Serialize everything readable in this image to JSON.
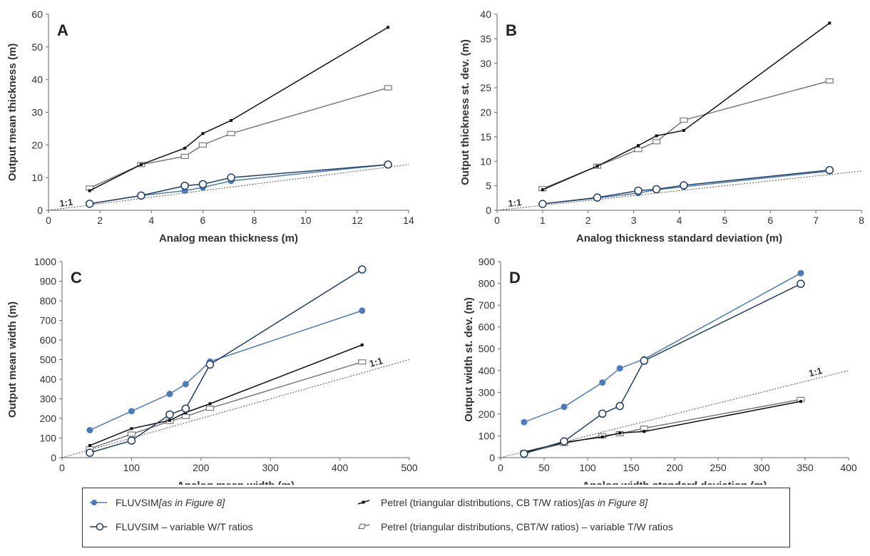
{
  "chart_data": [
    {
      "type": "line",
      "panel_label": "A",
      "xlabel": "Analog mean thickness (m)",
      "ylabel": "Output mean thickness (m)",
      "xlim": [
        0,
        14
      ],
      "ylim": [
        0,
        60
      ],
      "xticks": [
        0,
        2,
        4,
        6,
        8,
        10,
        12,
        14
      ],
      "yticks": [
        0,
        10,
        20,
        30,
        40,
        50,
        60
      ],
      "one_to_one_label": "1:1",
      "series": [
        {
          "key": "fluv_fig8",
          "x": [
            1.6,
            3.6,
            5.3,
            6.0,
            7.1,
            13.2
          ],
          "y": [
            2.0,
            4.5,
            6.0,
            7.0,
            9.0,
            14.0
          ]
        },
        {
          "key": "fluv_var",
          "x": [
            1.6,
            3.6,
            5.3,
            6.0,
            7.1,
            13.2
          ],
          "y": [
            2.0,
            4.5,
            7.5,
            8.0,
            10.0,
            14.0
          ]
        },
        {
          "key": "petrel_fig8",
          "x": [
            1.6,
            3.6,
            5.3,
            6.0,
            7.1,
            13.2
          ],
          "y": [
            6.0,
            14.0,
            19.0,
            23.5,
            27.5,
            56.0
          ]
        },
        {
          "key": "petrel_var",
          "x": [
            1.6,
            3.6,
            5.3,
            6.0,
            7.1,
            13.2
          ],
          "y": [
            6.8,
            14.0,
            16.5,
            20.0,
            23.5,
            37.5
          ]
        }
      ]
    },
    {
      "type": "line",
      "panel_label": "B",
      "xlabel": "Analog thickness standard deviation (m)",
      "ylabel": "Output thickness st. dev. (m)",
      "xlim": [
        0,
        8
      ],
      "ylim": [
        0,
        40
      ],
      "xticks": [
        0,
        1,
        2,
        3,
        4,
        5,
        6,
        7,
        8
      ],
      "yticks": [
        0,
        5,
        10,
        15,
        20,
        25,
        30,
        35,
        40
      ],
      "one_to_one_label": "1:1",
      "series": [
        {
          "key": "fluv_fig8",
          "x": [
            1.0,
            2.2,
            3.1,
            3.5,
            4.1,
            7.3
          ],
          "y": [
            1.3,
            2.5,
            3.5,
            4.2,
            4.8,
            8.0
          ]
        },
        {
          "key": "fluv_var",
          "x": [
            1.0,
            2.2,
            3.1,
            3.5,
            4.1,
            7.3
          ],
          "y": [
            1.3,
            2.6,
            4.0,
            4.3,
            5.1,
            8.2
          ]
        },
        {
          "key": "petrel_fig8",
          "x": [
            1.0,
            2.2,
            3.1,
            3.5,
            4.1,
            7.3
          ],
          "y": [
            4.2,
            9.0,
            13.2,
            15.2,
            16.3,
            38.2
          ]
        },
        {
          "key": "petrel_var",
          "x": [
            1.0,
            2.2,
            3.1,
            3.5,
            4.1,
            7.3
          ],
          "y": [
            4.4,
            9.0,
            12.4,
            14.0,
            18.4,
            26.4
          ]
        }
      ]
    },
    {
      "type": "line",
      "panel_label": "C",
      "xlabel": "Analog mean width (m)",
      "ylabel": "Output mean width (m)",
      "xlim": [
        0,
        500
      ],
      "ylim": [
        0,
        1000
      ],
      "xticks": [
        0,
        100,
        200,
        300,
        400,
        500
      ],
      "yticks": [
        0,
        100,
        200,
        300,
        400,
        500,
        600,
        700,
        800,
        900,
        1000
      ],
      "one_to_one_label": "1:1",
      "series": [
        {
          "key": "fluv_fig8",
          "x": [
            40,
            100,
            155,
            178,
            213,
            432
          ],
          "y": [
            140,
            237,
            325,
            375,
            490,
            750
          ]
        },
        {
          "key": "fluv_var",
          "x": [
            40,
            100,
            155,
            178,
            213,
            432
          ],
          "y": [
            25,
            87,
            220,
            250,
            475,
            960
          ]
        },
        {
          "key": "petrel_fig8",
          "x": [
            40,
            100,
            155,
            178,
            213,
            432
          ],
          "y": [
            62,
            148,
            190,
            230,
            275,
            575
          ]
        },
        {
          "key": "petrel_var",
          "x": [
            40,
            100,
            155,
            178,
            213,
            432
          ],
          "y": [
            45,
            120,
            185,
            210,
            252,
            488
          ]
        }
      ]
    },
    {
      "type": "line",
      "panel_label": "D",
      "xlabel": "Analog width standard deviation (m)",
      "ylabel": "Output width st. dev. (m)",
      "xlim": [
        0,
        400
      ],
      "ylim": [
        0,
        900
      ],
      "xticks": [
        0,
        50,
        100,
        150,
        200,
        250,
        300,
        350,
        400
      ],
      "yticks": [
        0,
        100,
        200,
        300,
        400,
        500,
        600,
        700,
        800,
        900
      ],
      "one_to_one_label": "1:1",
      "series": [
        {
          "key": "fluv_fig8",
          "x": [
            27,
            73,
            117,
            137,
            165,
            345
          ],
          "y": [
            163,
            233,
            345,
            410,
            452,
            847
          ]
        },
        {
          "key": "fluv_var",
          "x": [
            27,
            73,
            117,
            137,
            165,
            345
          ],
          "y": [
            18,
            75,
            202,
            237,
            445,
            798
          ]
        },
        {
          "key": "petrel_fig8",
          "x": [
            27,
            73,
            117,
            137,
            165,
            345
          ],
          "y": [
            25,
            70,
            95,
            113,
            120,
            258
          ]
        },
        {
          "key": "petrel_var",
          "x": [
            27,
            73,
            117,
            137,
            165,
            345
          ],
          "y": [
            22,
            65,
            100,
            110,
            135,
            267
          ]
        }
      ]
    }
  ],
  "colors": {
    "fluvsim": "#4a7bbf",
    "petrel_fig8": "#111111",
    "petrel_var": "#7a7a7a",
    "one_to_one": "#555555"
  },
  "legend": {
    "fluv_fig8": {
      "text": "FLUVSIM ",
      "italic": "[as in Figure 8]",
      "text_after": ""
    },
    "petrel_fig8": {
      "text": "Petrel (triangular distributions, CB T/W ratios) ",
      "italic": "[as in Figure 8]",
      "text_after": ""
    },
    "fluv_var": {
      "text": "FLUVSIM – variable W/T ratios"
    },
    "petrel_var": {
      "text": "Petrel (triangular distributions, CBT/W ratios) – variable T/W ratios"
    }
  }
}
